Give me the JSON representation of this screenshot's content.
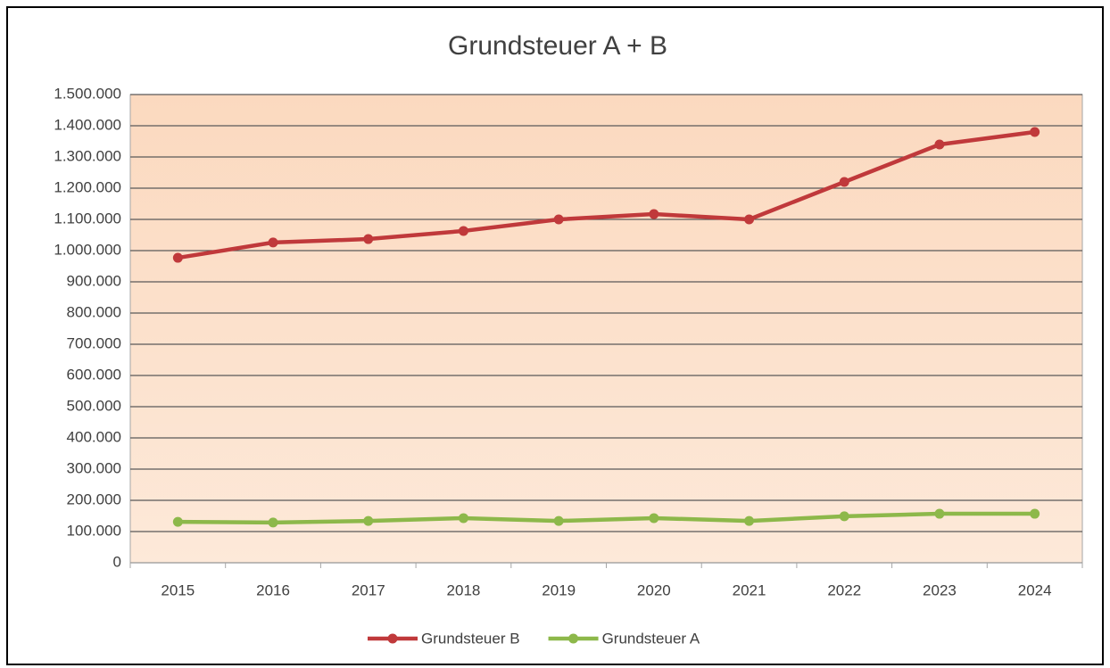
{
  "chart_data": {
    "type": "line",
    "title": "Grundsteuer A + B",
    "categories": [
      "2015",
      "2016",
      "2017",
      "2018",
      "2019",
      "2020",
      "2021",
      "2022",
      "2023",
      "2024"
    ],
    "series": [
      {
        "name": "Grundsteuer B",
        "color": "#c0393b",
        "values": [
          977000,
          1026000,
          1037000,
          1063000,
          1100000,
          1117000,
          1100000,
          1220000,
          1340000,
          1380000
        ]
      },
      {
        "name": "Grundsteuer A",
        "color": "#8db84a",
        "values": [
          131000,
          129000,
          134000,
          143000,
          134000,
          143000,
          134000,
          149000,
          157000,
          157000
        ]
      }
    ],
    "ylim": [
      0,
      1500000
    ],
    "yticks": [
      0,
      {
        "value": 100000,
        "label": "100.000"
      },
      {
        "value": 200000,
        "label": "200.000"
      },
      {
        "value": 300000,
        "label": "300.000"
      },
      {
        "value": 400000,
        "label": "400.000"
      },
      {
        "value": 500000,
        "label": "500.000"
      },
      {
        "value": 600000,
        "label": "600.000"
      },
      {
        "value": 700000,
        "label": "700.000"
      },
      {
        "value": 800000,
        "label": "800.000"
      },
      {
        "value": 900000,
        "label": "900.000"
      },
      {
        "value": 1000000,
        "label": "1.000.000"
      },
      {
        "value": 1100000,
        "label": "1.100.000"
      },
      {
        "value": 1200000,
        "label": "1.200.000"
      },
      {
        "value": 1300000,
        "label": "1.300.000"
      },
      {
        "value": 1400000,
        "label": "1.400.000"
      },
      {
        "value": 1500000,
        "label": "1.500.000"
      }
    ],
    "grid": true,
    "legend": "bottom"
  }
}
